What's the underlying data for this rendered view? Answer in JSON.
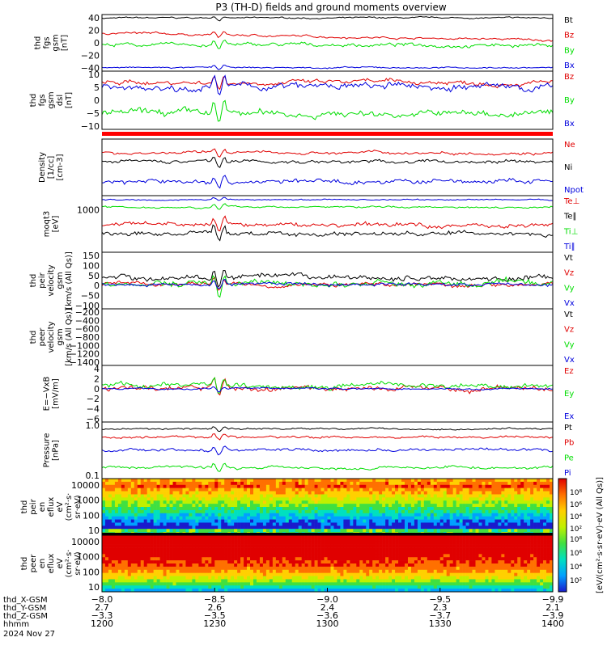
{
  "title": "P3 (TH-D) fields and ground moments overview",
  "colors": {
    "black": "#000000",
    "red": "#e00000",
    "green": "#00dd00",
    "blue": "#0000dd"
  },
  "chart_data": [
    {
      "type": "line",
      "ylabel": [
        "thd",
        "fgs",
        "gsm",
        "[nT]"
      ],
      "yticks": [
        "40",
        "20",
        "0",
        "−20",
        "−40"
      ],
      "ylim": [
        -40,
        42
      ],
      "series": [
        {
          "name": "Bt",
          "color": "black",
          "base": 37,
          "amp": 2
        },
        {
          "name": "Bz",
          "color": "red",
          "base": 15,
          "amp": 3,
          "trend": -10
        },
        {
          "name": "By",
          "color": "green",
          "base": -2,
          "amp": 5
        },
        {
          "name": "Bx",
          "color": "blue",
          "base": -35,
          "amp": 2
        }
      ]
    },
    {
      "type": "line",
      "ylabel": [
        "thd",
        "fgs",
        "gsm",
        "dsl",
        "[nT]"
      ],
      "yticks": [
        "10",
        "5",
        "0",
        "−5",
        "−10"
      ],
      "ylim": [
        -15,
        11
      ],
      "series": [
        {
          "name": "Bz",
          "color": "red",
          "base": 6,
          "amp": 2
        },
        {
          "name": "By",
          "color": "green",
          "base": -8,
          "amp": 3
        },
        {
          "name": "Bx",
          "color": "blue",
          "base": 4,
          "amp": 3
        }
      ]
    },
    {
      "type": "line",
      "ylabel": [
        "Density",
        "[1/cc]",
        "[cm-3]"
      ],
      "yticks": [],
      "ylim": [
        0,
        10
      ],
      "series": [
        {
          "name": "Ne",
          "color": "red",
          "base": 7.6,
          "amp": 0.5
        },
        {
          "name": "Ni",
          "color": "black",
          "base": 6.0,
          "amp": 0.6
        },
        {
          "name": "Npot",
          "color": "blue",
          "base": 2.5,
          "amp": 0.8
        }
      ]
    },
    {
      "type": "line",
      "ylabel": [
        "moqt3",
        "[eV]"
      ],
      "yticks": [
        "1000"
      ],
      "ylim": [
        0,
        10
      ],
      "series": [
        {
          "name": "Te⊥",
          "color": "red",
          "base": 4.8,
          "amp": 0.8
        },
        {
          "name": "Te∥",
          "color": "black",
          "base": 3.3,
          "amp": 0.8
        },
        {
          "name": "Ti⊥",
          "color": "green",
          "base": 8.0,
          "amp": 0.3
        },
        {
          "name": "Ti∥",
          "color": "blue",
          "base": 9.3,
          "amp": 0.2
        }
      ]
    },
    {
      "type": "line",
      "ylabel": [
        "thd",
        "peir",
        "velocity",
        "gsm",
        "[km/s (All Qs)]"
      ],
      "yticks": [
        "150",
        "100",
        "50",
        "0",
        "−50",
        "−100"
      ],
      "ylim": [
        -120,
        155
      ],
      "series": [
        {
          "name": "Vt",
          "color": "black",
          "base": 30,
          "amp": 25
        },
        {
          "name": "Vz",
          "color": "red",
          "base": 0,
          "amp": 20
        },
        {
          "name": "Vy",
          "color": "green",
          "base": 0,
          "amp": 30
        },
        {
          "name": "Vx",
          "color": "blue",
          "base": 0,
          "amp": 15
        }
      ]
    },
    {
      "type": "line",
      "ylabel": [
        "thd",
        "peer",
        "velocity",
        "gsm",
        "[km/s (All Qs)]"
      ],
      "yticks": [
        "−200",
        "−400",
        "−600",
        "−800",
        "−1000",
        "−1200",
        "−1400"
      ],
      "ylim": [
        -1450,
        0
      ],
      "series": [
        {
          "name": "Vt",
          "color": "black"
        },
        {
          "name": "Vz",
          "color": "red"
        },
        {
          "name": "Vy",
          "color": "green"
        },
        {
          "name": "Vx",
          "color": "blue"
        }
      ]
    },
    {
      "type": "line",
      "ylabel": [
        "E=−VxB",
        "[mV/m]"
      ],
      "yticks": [
        "4",
        "2",
        "0",
        "−2",
        "−4",
        "−6"
      ],
      "ylim": [
        -6.5,
        4.5
      ],
      "series": [
        {
          "name": "Ez",
          "color": "red",
          "base": 0,
          "amp": 1.0
        },
        {
          "name": "Ey",
          "color": "green",
          "base": 0.6,
          "amp": 1.0
        },
        {
          "name": "Ex",
          "color": "blue",
          "base": 0,
          "amp": 0.3
        }
      ]
    },
    {
      "type": "line",
      "ylabel": [
        "Pressure",
        "[nPa]"
      ],
      "yticks": [
        "1.0",
        "0.1"
      ],
      "ylim": [
        0,
        10
      ],
      "series": [
        {
          "name": "Pt",
          "color": "black",
          "base": 8.8,
          "amp": 0.3
        },
        {
          "name": "Pb",
          "color": "red",
          "base": 7.3,
          "amp": 0.4
        },
        {
          "name": "Pe",
          "color": "green",
          "base": 2.0,
          "amp": 0.5
        },
        {
          "name": "Pi",
          "color": "blue",
          "base": 5.0,
          "amp": 0.5
        }
      ]
    },
    {
      "type": "heatmap",
      "ylabel": [
        "thd",
        "peir",
        "en",
        "eflux",
        "eV",
        "(cm²·s·",
        "sr·eV)"
      ],
      "yticks": [
        "10000",
        "1000",
        "100",
        "10"
      ]
    },
    {
      "type": "heatmap",
      "ylabel": [
        "thd",
        "peer",
        "en",
        "eflux",
        "eV",
        "(cm²·s·",
        "sr·eV)"
      ],
      "yticks": [
        "10000",
        "1000",
        "100",
        "10"
      ]
    }
  ],
  "colorbar": {
    "label": "[eV/(cm²·s·sr·eV)·eV (All Qs)]",
    "upper_ticks": [
      "10⁸",
      "10⁶",
      "10⁴",
      "10²"
    ],
    "lower_ticks": [
      "10⁸",
      "10⁶",
      "10⁴",
      "10²"
    ]
  },
  "xaxis": {
    "rows": [
      {
        "label": "thd_X-GSM",
        "values": [
          "−8.0",
          "−8.5",
          "−9.0",
          "−9.5",
          "−9.9"
        ]
      },
      {
        "label": "thd_Y-GSM",
        "values": [
          "2.7",
          "2.6",
          "2.4",
          "2.3",
          "2.1"
        ]
      },
      {
        "label": "thd_Z-GSM",
        "values": [
          "−3.3",
          "−3.5",
          "−3.6",
          "−3.7",
          "−3.9"
        ]
      },
      {
        "label": "hhmm",
        "values": [
          "1200",
          "1230",
          "1300",
          "1330",
          "1400"
        ]
      }
    ],
    "date": "2024 Nov 27"
  }
}
